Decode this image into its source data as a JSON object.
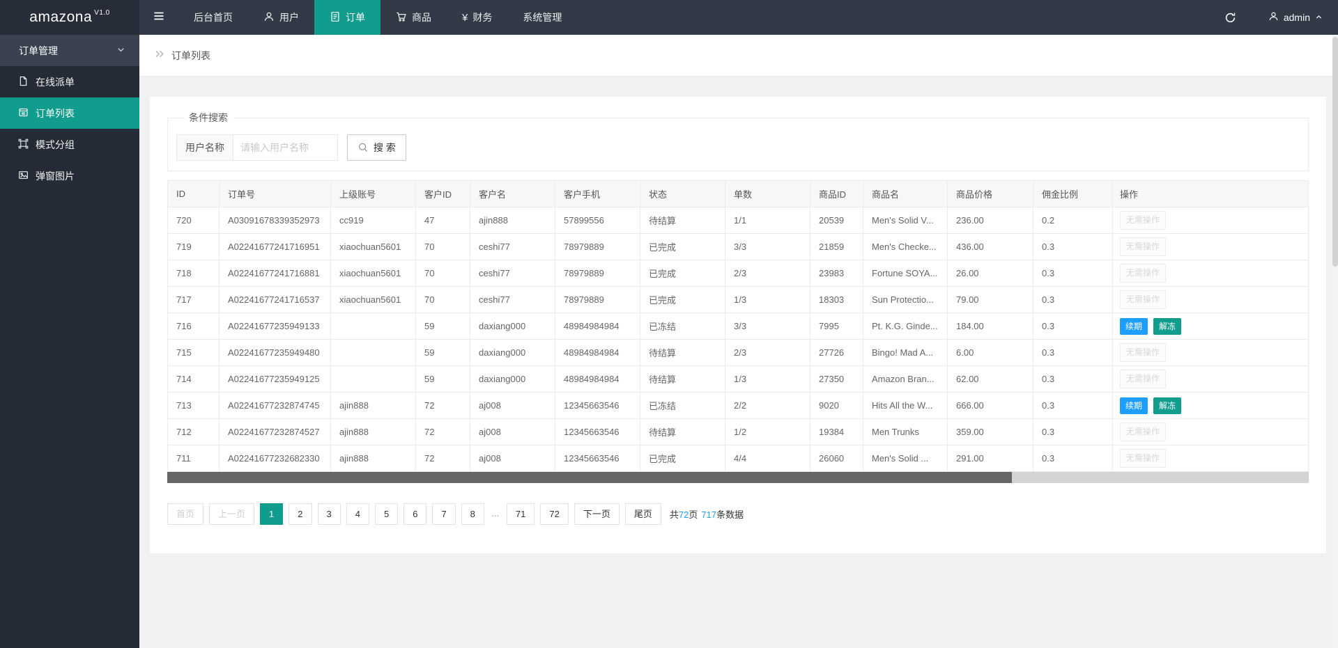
{
  "navbar": {
    "logo_text": "amazona",
    "logo_version": "V1.0",
    "menu": [
      {
        "label": "后台首页"
      },
      {
        "label": "用户"
      },
      {
        "label": "订单"
      },
      {
        "label": "商品"
      },
      {
        "label": "财务"
      },
      {
        "label": "系统管理"
      }
    ],
    "username": "admin"
  },
  "sidebar": {
    "group_label": "订单管理",
    "items": [
      {
        "label": "在线派单"
      },
      {
        "label": "订单列表"
      },
      {
        "label": "模式分组"
      },
      {
        "label": "弹窗图片"
      }
    ]
  },
  "breadcrumb": {
    "current": "订单列表"
  },
  "search": {
    "legend": "条件搜索",
    "field_label": "用户名称",
    "placeholder": "请输入用户名称",
    "button_label": "搜 索"
  },
  "colors": {
    "accent_teal": "#109d8e",
    "accent_blue": "#1e9fff",
    "status_pending": "#9acd32",
    "status_done": "#319c31",
    "status_frozen": "#ff1010"
  },
  "table": {
    "headers": [
      "ID",
      "订单号",
      "上级账号",
      "客户ID",
      "客户名",
      "客户手机",
      "状态",
      "单数",
      "商品ID",
      "商品名",
      "商品价格",
      "佣金比例",
      "操作"
    ],
    "rows": [
      {
        "id": "720",
        "order_no": "A03091678339352973",
        "parent": "cc919",
        "customer_id": "47",
        "customer": "ajin888",
        "phone": "57899556",
        "status": "待结算",
        "status_type": "pending",
        "count": "1/1",
        "product_id": "20539",
        "product": "Men's Solid V...",
        "price": "236.00",
        "ratio": "0.2",
        "actions": [
          {
            "label": "无需操作",
            "type": "disabled",
            "name": "no-action-button"
          }
        ]
      },
      {
        "id": "719",
        "order_no": "A02241677241716951",
        "parent": "xiaochuan5601",
        "customer_id": "70",
        "customer": "ceshi77",
        "phone": "78979889",
        "status": "已完成",
        "status_type": "done",
        "count": "3/3",
        "product_id": "21859",
        "product": "Men's Checke...",
        "price": "436.00",
        "ratio": "0.3",
        "actions": [
          {
            "label": "无需操作",
            "type": "disabled",
            "name": "no-action-button"
          }
        ]
      },
      {
        "id": "718",
        "order_no": "A02241677241716881",
        "parent": "xiaochuan5601",
        "customer_id": "70",
        "customer": "ceshi77",
        "phone": "78979889",
        "status": "已完成",
        "status_type": "done",
        "count": "2/3",
        "product_id": "23983",
        "product": "Fortune SOYA...",
        "price": "26.00",
        "ratio": "0.3",
        "actions": [
          {
            "label": "无需操作",
            "type": "disabled",
            "name": "no-action-button"
          }
        ]
      },
      {
        "id": "717",
        "order_no": "A02241677241716537",
        "parent": "xiaochuan5601",
        "customer_id": "70",
        "customer": "ceshi77",
        "phone": "78979889",
        "status": "已完成",
        "status_type": "done",
        "count": "1/3",
        "product_id": "18303",
        "product": "Sun Protectio...",
        "price": "79.00",
        "ratio": "0.3",
        "actions": [
          {
            "label": "无需操作",
            "type": "disabled",
            "name": "no-action-button"
          }
        ]
      },
      {
        "id": "716",
        "order_no": "A02241677235949133",
        "parent": "",
        "customer_id": "59",
        "customer": "daxiang000",
        "phone": "48984984984",
        "status": "已冻结",
        "status_type": "frozen",
        "count": "3/3",
        "product_id": "7995",
        "product": "Pt. K.G. Ginde...",
        "price": "184.00",
        "ratio": "0.3",
        "actions": [
          {
            "label": "续期",
            "type": "blue",
            "name": "renew-button"
          },
          {
            "label": "解冻",
            "type": "teal",
            "name": "unfreeze-button"
          }
        ]
      },
      {
        "id": "715",
        "order_no": "A02241677235949480",
        "parent": "",
        "customer_id": "59",
        "customer": "daxiang000",
        "phone": "48984984984",
        "status": "待结算",
        "status_type": "pending",
        "count": "2/3",
        "product_id": "27726",
        "product": "Bingo! Mad A...",
        "price": "6.00",
        "ratio": "0.3",
        "actions": [
          {
            "label": "无需操作",
            "type": "disabled",
            "name": "no-action-button"
          }
        ]
      },
      {
        "id": "714",
        "order_no": "A02241677235949125",
        "parent": "",
        "customer_id": "59",
        "customer": "daxiang000",
        "phone": "48984984984",
        "status": "待结算",
        "status_type": "pending",
        "count": "1/3",
        "product_id": "27350",
        "product": "Amazon Bran...",
        "price": "62.00",
        "ratio": "0.3",
        "actions": [
          {
            "label": "无需操作",
            "type": "disabled",
            "name": "no-action-button"
          }
        ]
      },
      {
        "id": "713",
        "order_no": "A02241677232874745",
        "parent": "ajin888",
        "customer_id": "72",
        "customer": "aj008",
        "phone": "12345663546",
        "status": "已冻结",
        "status_type": "frozen",
        "count": "2/2",
        "product_id": "9020",
        "product": "Hits All the W...",
        "price": "666.00",
        "ratio": "0.3",
        "actions": [
          {
            "label": "续期",
            "type": "blue",
            "name": "renew-button"
          },
          {
            "label": "解冻",
            "type": "teal",
            "name": "unfreeze-button"
          }
        ]
      },
      {
        "id": "712",
        "order_no": "A02241677232874527",
        "parent": "ajin888",
        "customer_id": "72",
        "customer": "aj008",
        "phone": "12345663546",
        "status": "待结算",
        "status_type": "pending",
        "count": "1/2",
        "product_id": "19384",
        "product": "Men Trunks",
        "price": "359.00",
        "ratio": "0.3",
        "actions": [
          {
            "label": "无需操作",
            "type": "disabled",
            "name": "no-action-button"
          }
        ]
      },
      {
        "id": "711",
        "order_no": "A02241677232682330",
        "parent": "ajin888",
        "customer_id": "72",
        "customer": "aj008",
        "phone": "12345663546",
        "status": "已完成",
        "status_type": "done",
        "count": "4/4",
        "product_id": "26060",
        "product": "Men's Solid ...",
        "price": "291.00",
        "ratio": "0.3",
        "actions": [
          {
            "label": "无需操作",
            "type": "disabled",
            "name": "no-action-button"
          }
        ]
      }
    ]
  },
  "pagination": {
    "items": [
      {
        "label": "首页",
        "type": "disabled"
      },
      {
        "label": "上一页",
        "type": "disabled"
      },
      {
        "label": "1",
        "type": "active"
      },
      {
        "label": "2",
        "type": "page"
      },
      {
        "label": "3",
        "type": "page"
      },
      {
        "label": "4",
        "type": "page"
      },
      {
        "label": "5",
        "type": "page"
      },
      {
        "label": "6",
        "type": "page"
      },
      {
        "label": "7",
        "type": "page"
      },
      {
        "label": "8",
        "type": "page"
      },
      {
        "label": "...",
        "type": "ellipsis"
      },
      {
        "label": "71",
        "type": "page"
      },
      {
        "label": "72",
        "type": "page"
      },
      {
        "label": "下一页",
        "type": "page"
      },
      {
        "label": "尾页",
        "type": "page"
      }
    ],
    "summary": {
      "prefix": "共",
      "pages": "72",
      "mid": "页",
      "count": "717",
      "suffix": "条数据"
    }
  }
}
